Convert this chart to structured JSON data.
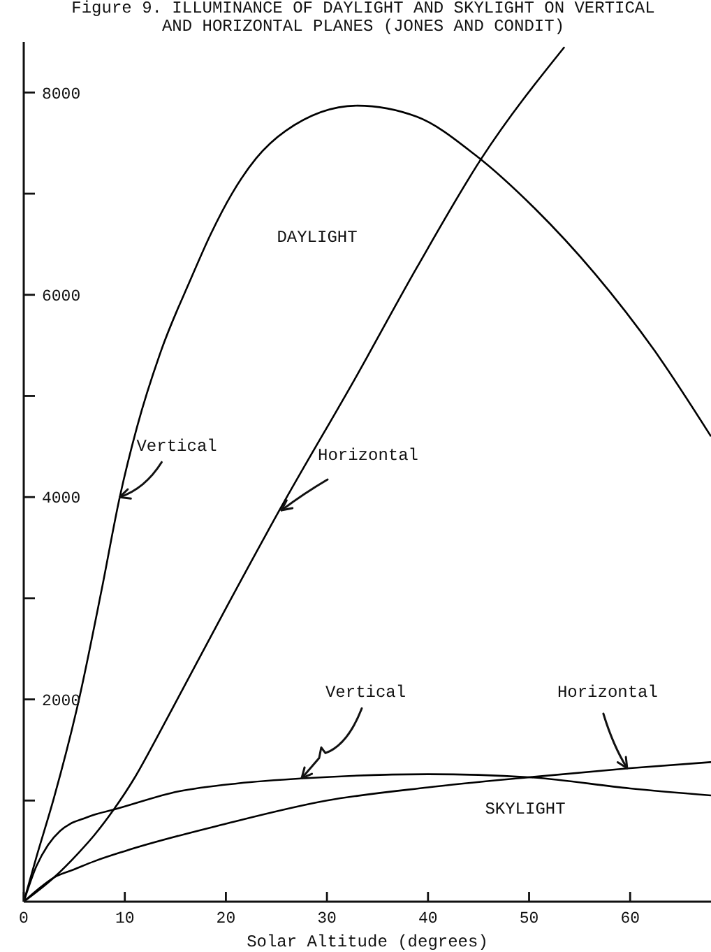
{
  "chart_data": {
    "type": "line",
    "title": "Figure 9. ILLUMINANCE OF DAYLIGHT AND SKYLIGHT ON VERTICAL AND HORIZONTAL PLANES (JONES AND CONDIT)",
    "xlabel": "Solar Altitude (degrees)",
    "xlim": [
      0,
      68
    ],
    "xticks": [
      0,
      10,
      20,
      30,
      40,
      50,
      60
    ],
    "ylim": [
      0,
      8500
    ],
    "yticks": [
      {
        "value": 1000,
        "label": null
      },
      2000,
      {
        "value": 3000,
        "label": null
      },
      4000,
      {
        "value": 5000,
        "label": null
      },
      6000,
      {
        "value": 7000,
        "label": null
      },
      8000
    ],
    "marker": "none",
    "series": [
      {
        "color": "#000000",
        "x": [
          0,
          1.25,
          3,
          5.4,
          7.7,
          9.5,
          11.2,
          13.6,
          16.5,
          18.5,
          20.6,
          23,
          25.9,
          33,
          38.9,
          44.7,
          50.6,
          56.5,
          62.4,
          68
        ],
        "values": [
          0,
          440,
          1030,
          1970,
          3080,
          4000,
          4690,
          5450,
          6150,
          6600,
          7000,
          7350,
          7620,
          7870,
          7760,
          7380,
          6850,
          6210,
          5450,
          4600
        ]
      },
      {
        "color": "#000000",
        "x": [
          0,
          3,
          5.4,
          7,
          8.9,
          11,
          13,
          15.3,
          20,
          25.3,
          33,
          38.9,
          45.3,
          53.5
        ],
        "values": [
          0,
          240,
          480,
          660,
          910,
          1230,
          1590,
          2020,
          2900,
          3870,
          5210,
          6270,
          7350,
          8450
        ]
      },
      {
        "color": "#000000",
        "x": [
          0,
          1.25,
          2.4,
          3.6,
          4.6,
          5.9,
          7,
          8.9,
          15.3,
          21.2,
          27.7,
          40,
          50,
          60,
          68
        ],
        "values": [
          0,
          350,
          560,
          700,
          770,
          820,
          860,
          910,
          1090,
          1170,
          1220,
          1260,
          1230,
          1120,
          1050
        ]
      },
      {
        "color": "#000000",
        "x": [
          0,
          1.5,
          3,
          5,
          7,
          10,
          20,
          30,
          40,
          50,
          60,
          68
        ],
        "values": [
          0,
          130,
          240,
          320,
          400,
          500,
          770,
          1000,
          1130,
          1230,
          1320,
          1380
        ]
      }
    ],
    "annotations": [
      "DAYLIGHT",
      {
        "text": "Vertical",
        "x": 9.5,
        "y": 4000
      },
      {
        "text": "Horizontal",
        "x": 25.5,
        "y": 3870
      },
      {
        "text": "Vertical",
        "x": 27.5,
        "y": 1220
      },
      {
        "text": "Horizontal",
        "x": 59.7,
        "y": 1320
      },
      "SKYLIGHT"
    ]
  }
}
